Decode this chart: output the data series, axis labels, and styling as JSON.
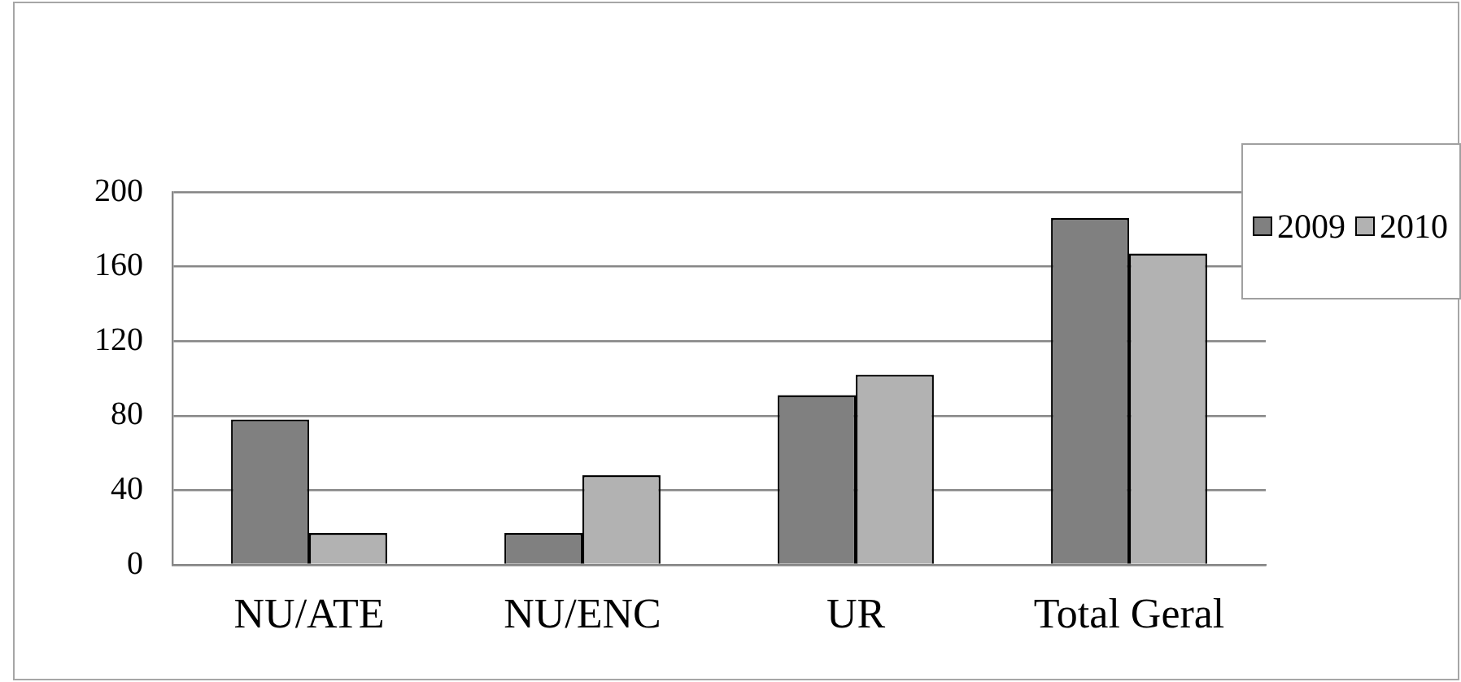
{
  "chart_data": {
    "type": "bar",
    "categories": [
      "NU/ATE",
      "NU/ENC",
      "UR",
      "Total Geral"
    ],
    "series": [
      {
        "name": "2009",
        "color": "#808080",
        "values": [
          78,
          17,
          91,
          186
        ]
      },
      {
        "name": "2010",
        "color": "#b2b2b2",
        "values": [
          17,
          48,
          102,
          167
        ]
      }
    ],
    "ylim": [
      0,
      200
    ],
    "yticks": [
      0,
      40,
      80,
      120,
      160,
      200
    ],
    "grid": "y",
    "legend": "top right"
  }
}
